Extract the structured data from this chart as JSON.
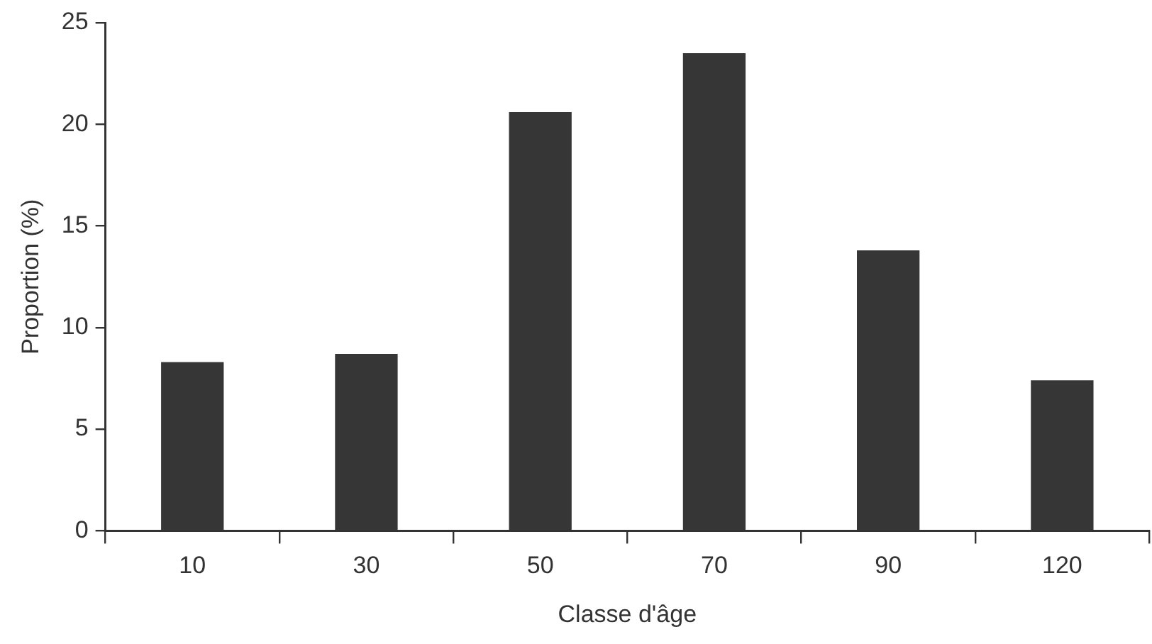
{
  "chart_data": {
    "type": "bar",
    "xlabel": "Classe d'âge",
    "ylabel": "Proportion (%)",
    "categories": [
      "10",
      "30",
      "50",
      "70",
      "90",
      "120"
    ],
    "values": [
      8.3,
      8.7,
      20.6,
      23.5,
      13.8,
      7.4
    ],
    "color": "#363636",
    "ylim": [
      0,
      25
    ],
    "yticks": [
      0,
      5,
      10,
      15,
      20,
      25
    ],
    "grid": false,
    "legend": false
  }
}
